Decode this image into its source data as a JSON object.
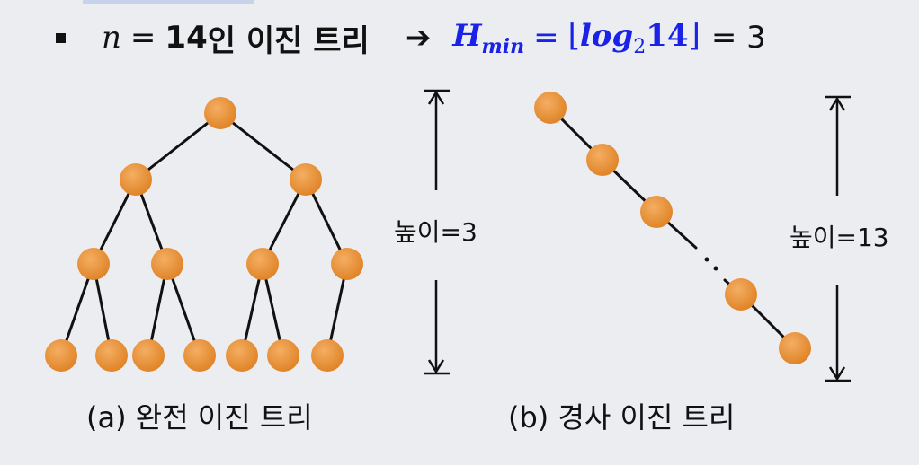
{
  "headline": {
    "n_var": "n",
    "equals_1": "=",
    "n_value": "14",
    "tree_text": "인 이진 트리",
    "arrow": "➔",
    "h_symbol": "H",
    "h_sub": "min",
    "equals_2": "=",
    "floor_open": "⌊",
    "log_text": "log",
    "log_base": "2",
    "log_arg": "14",
    "floor_close": "⌋",
    "result": "= 3"
  },
  "tree_a": {
    "caption": "(a) 완전 이진 트리",
    "height_label": "높이=3"
  },
  "tree_b": {
    "caption": "(b) 경사 이진 트리",
    "height_label": "높이=13"
  },
  "colors": {
    "node": "#e9903a",
    "edge": "#111111",
    "accent_blue": "#1a22e8"
  }
}
